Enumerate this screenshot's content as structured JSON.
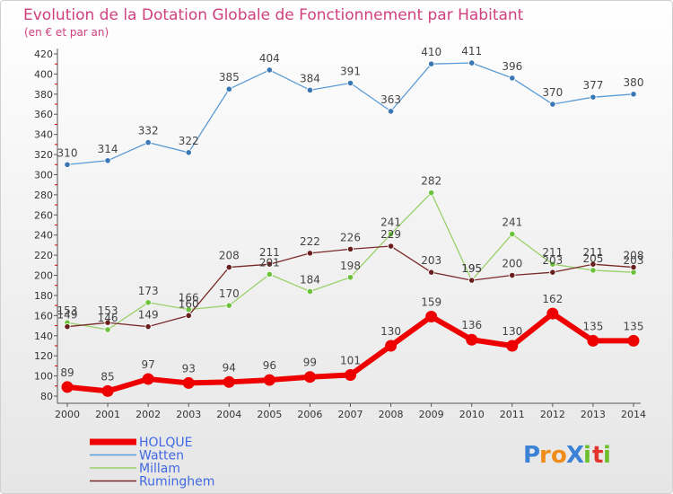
{
  "chart_data": {
    "type": "line",
    "title": "Evolution de la Dotation Globale de Fonctionnement par Habitant",
    "subtitle": "(en € et par an)",
    "ylim": [
      80,
      420
    ],
    "yticks": [
      80,
      100,
      120,
      140,
      160,
      180,
      200,
      220,
      240,
      260,
      280,
      300,
      320,
      340,
      360,
      380,
      400,
      420
    ],
    "categories": [
      "2000",
      "2001",
      "2002",
      "2003",
      "2004",
      "2005",
      "2006",
      "2007",
      "2008",
      "2009",
      "2010",
      "2011",
      "2012",
      "2013",
      "2014"
    ],
    "grid": false,
    "legend_position": "bottom-left",
    "series": [
      {
        "name": "Watten",
        "color": "#5b9bd5",
        "marker": "#3a78b5",
        "values": [
          310,
          314,
          332,
          322,
          385,
          404,
          384,
          391,
          363,
          410,
          411,
          396,
          370,
          377,
          380
        ]
      },
      {
        "name": "Millam",
        "color": "#9ad06a",
        "marker": "#6cc23a",
        "values": [
          153,
          146,
          173,
          166,
          170,
          201,
          184,
          198,
          241,
          282,
          195,
          241,
          211,
          205,
          203
        ]
      },
      {
        "name": "Ruminghem",
        "color": "#7a2a2a",
        "marker": "#6a1f1f",
        "values": [
          149,
          153,
          149,
          160,
          208,
          211,
          222,
          226,
          229,
          203,
          195,
          200,
          203,
          211,
          208
        ]
      },
      {
        "name": "HOLQUE",
        "color": "#ee0000",
        "marker": "#ee0000",
        "values": [
          89,
          85,
          97,
          93,
          94,
          96,
          99,
          101,
          130,
          159,
          136,
          130,
          162,
          135,
          135
        ]
      }
    ]
  },
  "legend": {
    "entries": [
      {
        "name": "HOLQUE",
        "color": "#ee0000"
      },
      {
        "name": "Watten",
        "color": "#5b9bd5"
      },
      {
        "name": "Millam",
        "color": "#9ad06a"
      },
      {
        "name": "Ruminghem",
        "color": "#7a2a2a"
      }
    ],
    "text_color": "#4169e1"
  },
  "logo": {
    "text": "Proxiti"
  }
}
